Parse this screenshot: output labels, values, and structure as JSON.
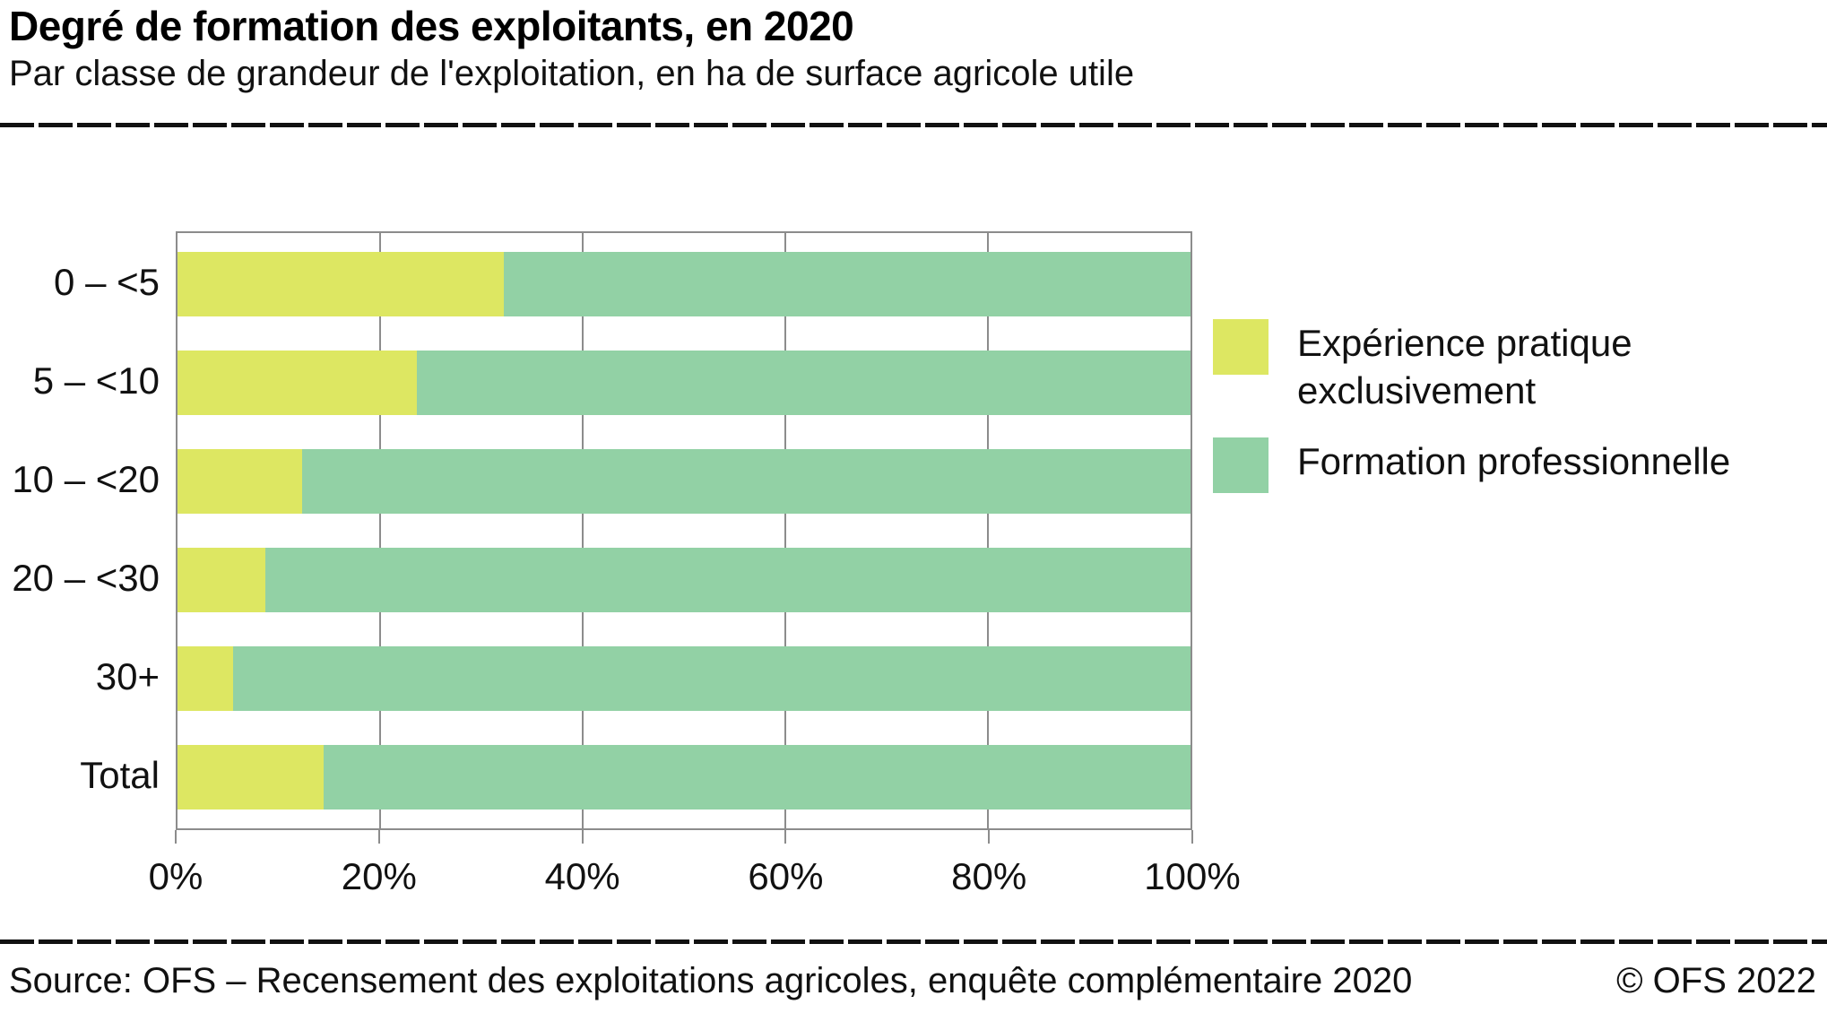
{
  "header": {
    "title": "Degré de formation des exploitants, en 2020",
    "subtitle": "Par classe de grandeur de l'exploitation, en ha de surface agricole utile"
  },
  "footer": {
    "source": "Source: OFS – Recensement des exploitations agricoles, enquête complémentaire 2020",
    "copyright": "© OFS 2022"
  },
  "chart_data": {
    "type": "bar",
    "orientation": "horizontal",
    "stacked": true,
    "title": "Degré de formation des exploitants, en 2020",
    "subtitle": "Par classe de grandeur de l'exploitation, en ha de surface agricole utile",
    "categories": [
      "0 – <5",
      "5 – <10",
      "10 – <20",
      "20 – <30",
      "30+",
      "Total"
    ],
    "series": [
      {
        "name": "Expérience pratique exclusivement",
        "label_lines": [
          "Expérience pratique",
          "exclusivement"
        ],
        "color": "#dde762",
        "values": [
          32.2,
          23.6,
          12.3,
          8.7,
          5.5,
          14.4
        ]
      },
      {
        "name": "Formation professionnelle",
        "label_lines": [
          "Formation professionnelle"
        ],
        "color": "#92d1a5",
        "values": [
          67.8,
          76.4,
          87.7,
          91.3,
          94.5,
          85.6
        ]
      }
    ],
    "x_ticks": [
      "0%",
      "20%",
      "40%",
      "60%",
      "80%",
      "100%"
    ],
    "xlim": [
      0,
      100
    ],
    "grid": "vertical",
    "legend_position": "right",
    "colors": {
      "grid": "#8c8c8c",
      "border": "#8c8c8c",
      "axis_text": "#111111"
    }
  }
}
